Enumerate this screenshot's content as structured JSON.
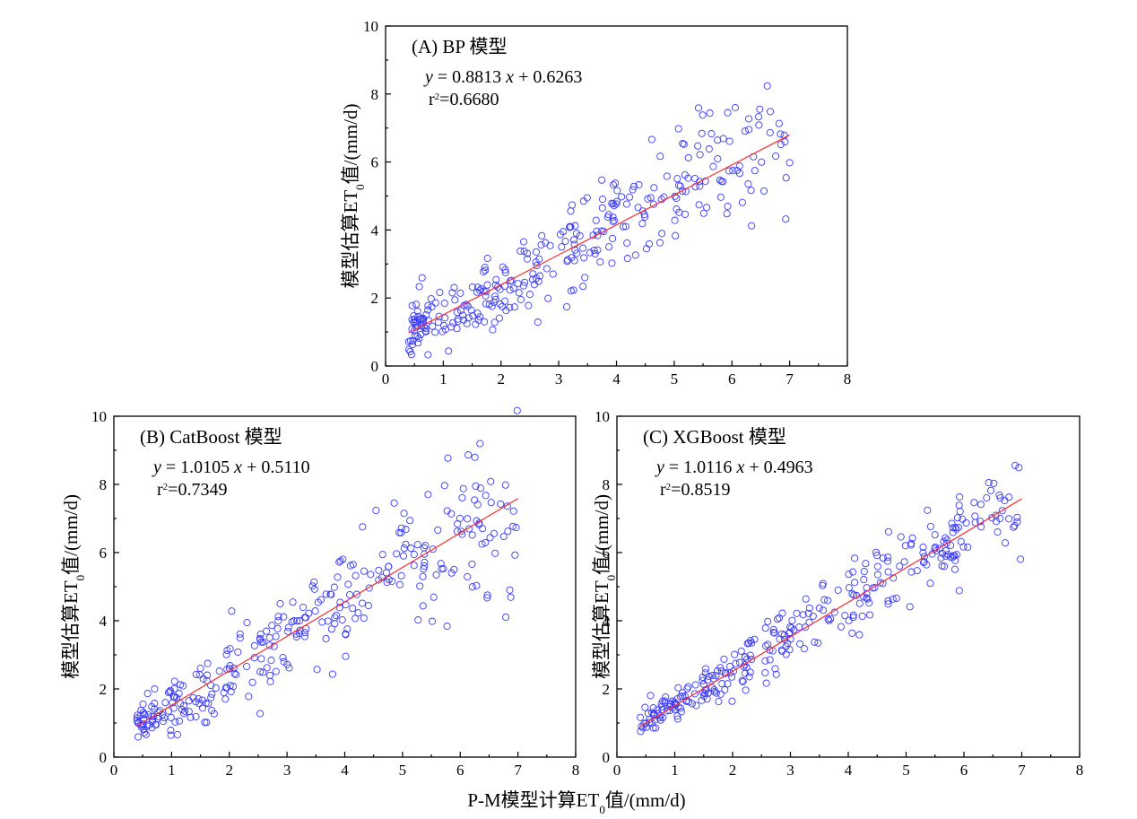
{
  "chart_data": [
    {
      "id": "A",
      "type": "scatter",
      "title": "(A)   BP 模型",
      "equation": {
        "y_var": "y",
        "text": " = 0.8813 ",
        "x_var": "x",
        "text2": " + 0.6263"
      },
      "r2": {
        "prefix": "r",
        "sup": "2",
        "value": "=0.6680"
      },
      "ylabel": "模型估算ET0值/(mm/d)",
      "xlim": [
        0,
        8
      ],
      "ylim": [
        0,
        10
      ],
      "xticks": [
        0,
        1,
        2,
        3,
        4,
        5,
        6,
        7,
        8
      ],
      "yticks": [
        0,
        2,
        4,
        6,
        8,
        10
      ],
      "fit": {
        "slope": 0.8813,
        "intercept": 0.6263,
        "x_range": [
          0.4,
          7.0
        ]
      },
      "points_seed": 11,
      "points_count": 320,
      "points_noise": 0.9
    },
    {
      "id": "B",
      "type": "scatter",
      "title": "(B)   CatBoost 模型",
      "equation": {
        "y_var": "y",
        "text": " = 1.0105 ",
        "x_var": "x",
        "text2": " + 0.5110"
      },
      "r2": {
        "prefix": "r",
        "sup": "2",
        "value": "=0.7349"
      },
      "ylabel": "模型估算ET0值/(mm/d)",
      "xlim": [
        0,
        8
      ],
      "ylim": [
        0,
        10
      ],
      "xticks": [
        0,
        1,
        2,
        3,
        4,
        5,
        6,
        7,
        8
      ],
      "yticks": [
        0,
        2,
        4,
        6,
        8,
        10
      ],
      "fit": {
        "slope": 1.0105,
        "intercept": 0.511,
        "x_range": [
          0.4,
          7.0
        ]
      },
      "points_seed": 23,
      "points_count": 320,
      "points_noise": 0.85
    },
    {
      "id": "C",
      "type": "scatter",
      "title": "(C)   XGBoost 模型",
      "equation": {
        "y_var": "y",
        "text": " = 1.0116 ",
        "x_var": "x",
        "text2": " + 0.4963"
      },
      "r2": {
        "prefix": "r",
        "sup": "2",
        "value": "=0.8519"
      },
      "ylabel": "模型估算ET0值/(mm/d)",
      "xlim": [
        0,
        8
      ],
      "ylim": [
        0,
        10
      ],
      "xticks": [
        0,
        1,
        2,
        3,
        4,
        5,
        6,
        7,
        8
      ],
      "yticks": [
        0,
        2,
        4,
        6,
        8,
        10
      ],
      "fit": {
        "slope": 1.0116,
        "intercept": 0.4963,
        "x_range": [
          0.4,
          7.0
        ]
      },
      "points_seed": 37,
      "points_count": 320,
      "points_noise": 0.55
    }
  ],
  "shared_xlabel": "P-M模型计算ET0值/(mm/d)",
  "colors": {
    "points": "#3b3bff",
    "fit": "#ff2b2b",
    "axes": "#000000"
  }
}
